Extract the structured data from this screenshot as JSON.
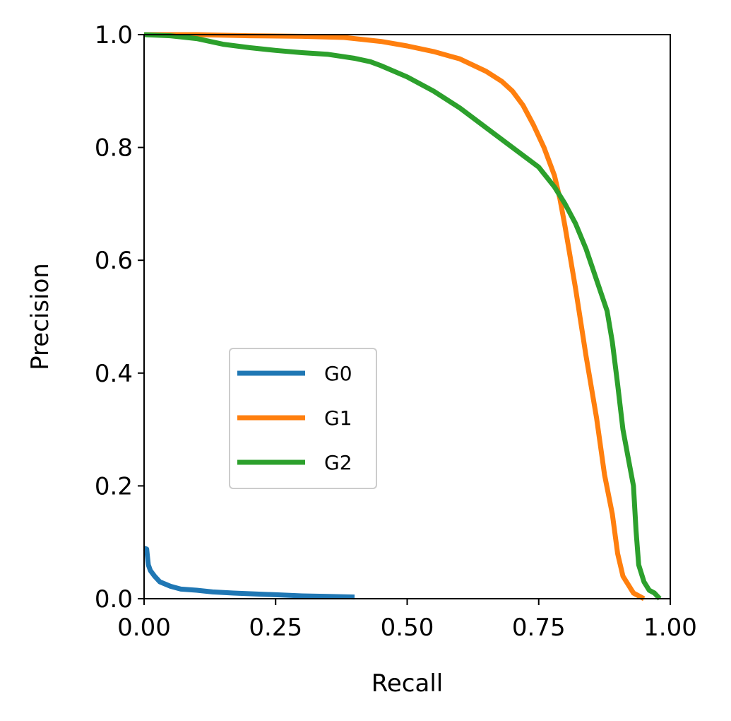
{
  "chart_data": {
    "type": "line",
    "title": "",
    "xlabel": "Recall",
    "ylabel": "Precision",
    "xlim": [
      0,
      1
    ],
    "ylim": [
      0,
      1
    ],
    "grid": false,
    "legend_placement": "center-left",
    "x_ticks": [
      "0.00",
      "0.25",
      "0.50",
      "0.75",
      "1.00"
    ],
    "y_ticks": [
      "0.0",
      "0.2",
      "0.4",
      "0.6",
      "0.8",
      "1.0"
    ],
    "series": [
      {
        "name": "G0",
        "color": "#1f77b4",
        "points": [
          [
            0.0,
            0.09
          ],
          [
            0.005,
            0.088
          ],
          [
            0.008,
            0.06
          ],
          [
            0.012,
            0.05
          ],
          [
            0.02,
            0.04
          ],
          [
            0.03,
            0.03
          ],
          [
            0.05,
            0.022
          ],
          [
            0.07,
            0.017
          ],
          [
            0.1,
            0.015
          ],
          [
            0.13,
            0.012
          ],
          [
            0.17,
            0.01
          ],
          [
            0.25,
            0.007
          ],
          [
            0.3,
            0.005
          ],
          [
            0.35,
            0.004
          ],
          [
            0.4,
            0.003
          ]
        ]
      },
      {
        "name": "G1",
        "color": "#ff7f0e",
        "points": [
          [
            0.0,
            1.0
          ],
          [
            0.1,
            1.0
          ],
          [
            0.2,
            0.998
          ],
          [
            0.3,
            0.997
          ],
          [
            0.38,
            0.995
          ],
          [
            0.45,
            0.988
          ],
          [
            0.5,
            0.98
          ],
          [
            0.55,
            0.97
          ],
          [
            0.6,
            0.957
          ],
          [
            0.65,
            0.935
          ],
          [
            0.68,
            0.917
          ],
          [
            0.7,
            0.9
          ],
          [
            0.72,
            0.875
          ],
          [
            0.74,
            0.84
          ],
          [
            0.76,
            0.8
          ],
          [
            0.78,
            0.75
          ],
          [
            0.79,
            0.71
          ],
          [
            0.8,
            0.66
          ],
          [
            0.82,
            0.55
          ],
          [
            0.84,
            0.43
          ],
          [
            0.86,
            0.32
          ],
          [
            0.875,
            0.22
          ],
          [
            0.89,
            0.15
          ],
          [
            0.9,
            0.08
          ],
          [
            0.91,
            0.04
          ],
          [
            0.93,
            0.01
          ],
          [
            0.95,
            0.0
          ]
        ]
      },
      {
        "name": "G2",
        "color": "#2ca02c",
        "points": [
          [
            0.0,
            1.0
          ],
          [
            0.05,
            0.998
          ],
          [
            0.1,
            0.993
          ],
          [
            0.15,
            0.983
          ],
          [
            0.2,
            0.977
          ],
          [
            0.25,
            0.972
          ],
          [
            0.3,
            0.968
          ],
          [
            0.35,
            0.965
          ],
          [
            0.4,
            0.958
          ],
          [
            0.43,
            0.952
          ],
          [
            0.45,
            0.945
          ],
          [
            0.5,
            0.925
          ],
          [
            0.55,
            0.9
          ],
          [
            0.6,
            0.87
          ],
          [
            0.65,
            0.835
          ],
          [
            0.7,
            0.8
          ],
          [
            0.75,
            0.765
          ],
          [
            0.78,
            0.73
          ],
          [
            0.8,
            0.7
          ],
          [
            0.82,
            0.665
          ],
          [
            0.84,
            0.62
          ],
          [
            0.86,
            0.565
          ],
          [
            0.88,
            0.51
          ],
          [
            0.89,
            0.455
          ],
          [
            0.9,
            0.38
          ],
          [
            0.91,
            0.3
          ],
          [
            0.92,
            0.25
          ],
          [
            0.93,
            0.2
          ],
          [
            0.935,
            0.12
          ],
          [
            0.94,
            0.06
          ],
          [
            0.95,
            0.03
          ],
          [
            0.96,
            0.015
          ],
          [
            0.97,
            0.01
          ],
          [
            0.98,
            0.0
          ]
        ]
      }
    ]
  }
}
